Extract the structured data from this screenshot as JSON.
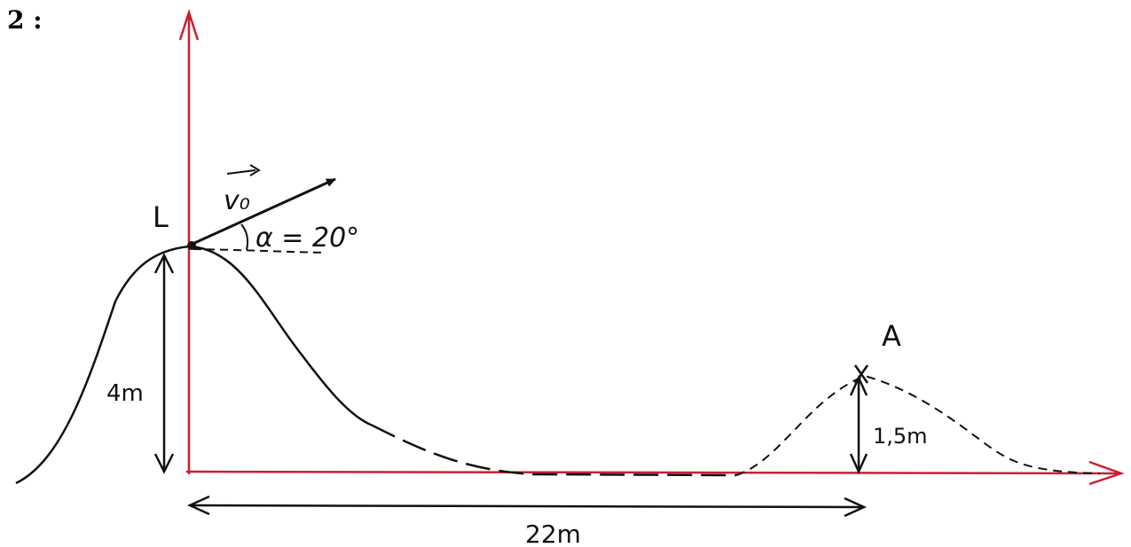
{
  "problem_number": "2 :",
  "labels": {
    "launch_point": "L",
    "target_point": "A",
    "velocity": "v₀",
    "angle": "α = 20°",
    "launch_height": "4m",
    "target_height": "1,5m",
    "horizontal_distance": "22m"
  },
  "colors": {
    "axes": "#cc1f2d",
    "ink": "#111111"
  }
}
